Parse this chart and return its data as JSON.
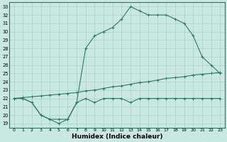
{
  "xlabel": "Humidex (Indice chaleur)",
  "xlim": [
    -0.5,
    23.5
  ],
  "ylim": [
    18.5,
    33.5
  ],
  "xticks": [
    0,
    1,
    2,
    3,
    4,
    5,
    6,
    7,
    8,
    9,
    10,
    11,
    12,
    13,
    14,
    15,
    16,
    17,
    18,
    19,
    20,
    21,
    22,
    23
  ],
  "yticks": [
    19,
    20,
    21,
    22,
    23,
    24,
    25,
    26,
    27,
    28,
    29,
    30,
    31,
    32,
    33
  ],
  "bg_color": "#c9e8e2",
  "line_color": "#2a7a6a",
  "grid_color": "#aad0c8",
  "line1_x": [
    0,
    1,
    2,
    3,
    4,
    5,
    6,
    7,
    8,
    9,
    10,
    11,
    12,
    13,
    14,
    15,
    16,
    17,
    18,
    19,
    20,
    21,
    22,
    23
  ],
  "line1_y": [
    22,
    22.1,
    22.2,
    22.3,
    22.4,
    22.5,
    22.6,
    22.7,
    22.9,
    23.0,
    23.2,
    23.4,
    23.5,
    23.7,
    23.9,
    24.0,
    24.2,
    24.4,
    24.5,
    24.6,
    24.8,
    24.9,
    25.0,
    25.1
  ],
  "line2_x": [
    0,
    1,
    2,
    3,
    4,
    5,
    6,
    7,
    8,
    9,
    10,
    11,
    12,
    13,
    14,
    15,
    16,
    17,
    18,
    19,
    20,
    21,
    22,
    23
  ],
  "line2_y": [
    22,
    22,
    21.5,
    20,
    19.5,
    19.5,
    19.5,
    21.5,
    22,
    21.5,
    22,
    22,
    22,
    21.5,
    22,
    22,
    22,
    22,
    22,
    22,
    22,
    22,
    22,
    22
  ],
  "line3_x": [
    0,
    1,
    2,
    3,
    4,
    5,
    6,
    7,
    8,
    9,
    10,
    11,
    12,
    13,
    14,
    15,
    16,
    17,
    18,
    19,
    20,
    21,
    22,
    23
  ],
  "line3_y": [
    22,
    22,
    21.5,
    20,
    19.5,
    19.0,
    19.5,
    21.5,
    28.0,
    29.5,
    30.0,
    30.5,
    31.5,
    33.0,
    32.5,
    32.0,
    32.0,
    32.0,
    31.5,
    31.0,
    29.5,
    27.0,
    26.0,
    25.0
  ]
}
